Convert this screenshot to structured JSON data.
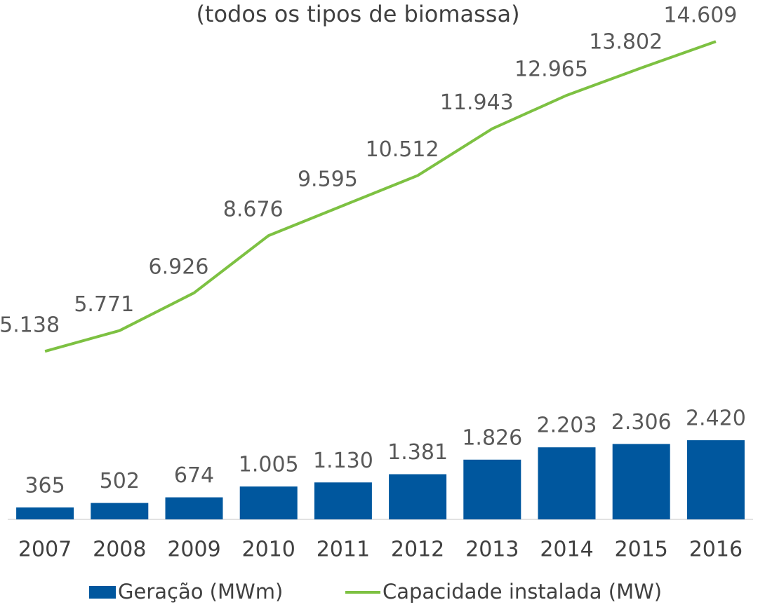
{
  "chart_data": {
    "type": "bar",
    "title": "(todos os tipos de biomassa)",
    "categories": [
      "2007",
      "2008",
      "2009",
      "2010",
      "2011",
      "2012",
      "2013",
      "2014",
      "2015",
      "2016"
    ],
    "ylim": [
      0,
      15000
    ],
    "series": [
      {
        "name": "Geração (MWm)",
        "type": "bar",
        "color": "#00579e",
        "values": [
          365,
          502,
          674,
          1005,
          1130,
          1381,
          1826,
          2203,
          2306,
          2420
        ],
        "value_labels": [
          "365",
          "502",
          "674",
          "1.005",
          "1.130",
          "1.381",
          "1.826",
          "2.203",
          "2.306",
          "2.420"
        ]
      },
      {
        "name": "Capacidade instalada (MW)",
        "type": "line",
        "color": "#7dc142",
        "values": [
          5138,
          5771,
          6926,
          8676,
          9595,
          10512,
          11943,
          12965,
          13802,
          14609
        ],
        "value_labels": [
          "5.138",
          "5.771",
          "6.926",
          "8.676",
          "9.595",
          "10.512",
          "11.943",
          "12.965",
          "13.802",
          "14.609"
        ]
      }
    ]
  }
}
